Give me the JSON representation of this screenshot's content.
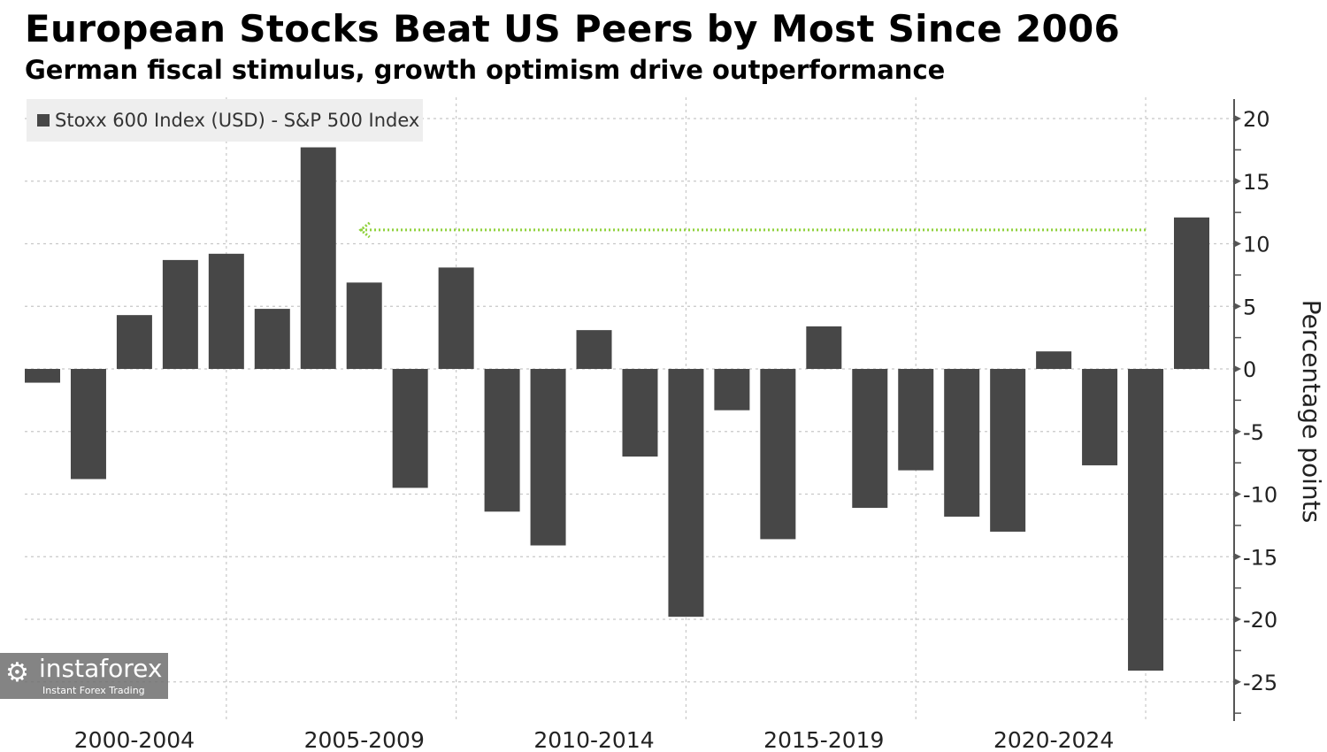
{
  "title": "European Stocks Beat US Peers by Most Since 2006",
  "subtitle": "German fiscal stimulus, growth optimism drive outperformance",
  "watermark": {
    "name": "instaforex",
    "tagline": "Instant Forex Trading"
  },
  "chart_data": {
    "type": "bar",
    "title": "European Stocks Beat US Peers by Most Since 2006",
    "subtitle": "German fiscal stimulus, growth optimism drive outperformance",
    "legend": [
      "Stoxx 600 Index (USD) - S&P 500 Index"
    ],
    "legend_placement": "top-left",
    "ylabel": "Percentage points",
    "ylim": [
      -28,
      21
    ],
    "yticks": [
      20,
      15,
      10,
      5,
      0,
      -5,
      -10,
      -15,
      -20,
      -25
    ],
    "xtick_labels": [
      "2000-2004",
      "2005-2009",
      "2010-2014",
      "2015-2019",
      "2020-2024"
    ],
    "categories": [
      "2000",
      "2001",
      "2002",
      "2003",
      "2004",
      "2005",
      "2006",
      "2007",
      "2008",
      "2009",
      "2010",
      "2011",
      "2012",
      "2013",
      "2014",
      "2015",
      "2016",
      "2017",
      "2018",
      "2019",
      "2020",
      "2021",
      "2022",
      "2023",
      "2024",
      "2025"
    ],
    "values": [
      -1.1,
      -8.8,
      4.3,
      8.7,
      9.2,
      4.8,
      17.7,
      6.9,
      -9.5,
      8.1,
      -11.4,
      -14.1,
      3.1,
      -7.0,
      -19.8,
      -3.3,
      -13.6,
      3.4,
      -11.1,
      -8.1,
      -11.8,
      -13.0,
      1.4,
      -7.7,
      -24.1,
      12.1
    ],
    "bar_color": "#474747",
    "annotation": {
      "type": "arrow",
      "from_category": "2024",
      "to_category": "2007",
      "y": 11.1,
      "color": "#8fd13a"
    },
    "grid": true
  }
}
